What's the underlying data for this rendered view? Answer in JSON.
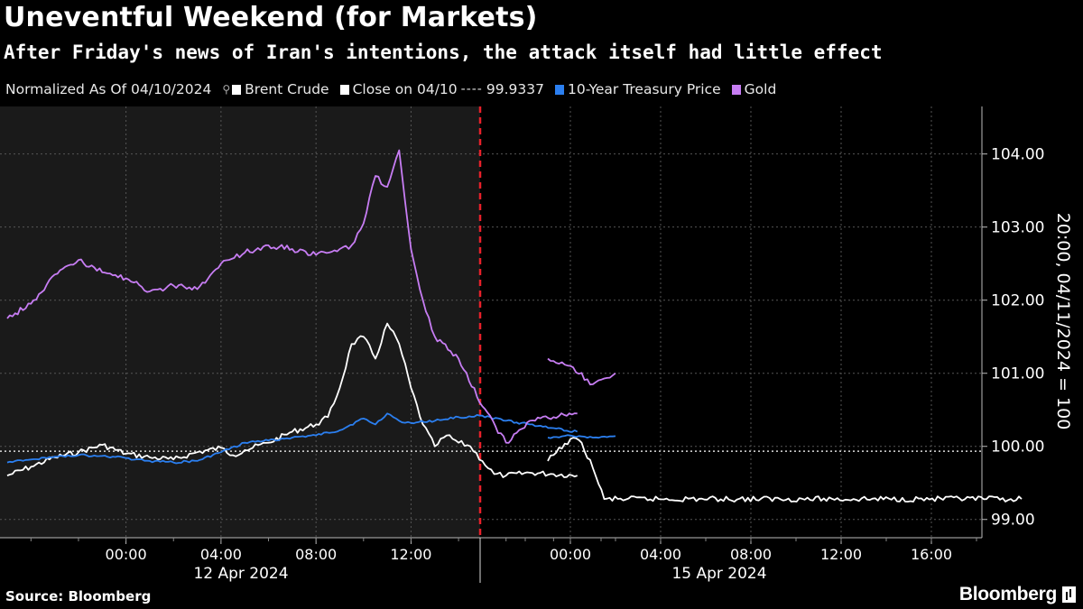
{
  "chart_data": {
    "type": "line",
    "title": "Uneventful Weekend (for Markets)",
    "subtitle": "After Friday's news of Iran's intentions, the attack itself had little effect",
    "normalization_note": "Normalized As Of 04/10/2024",
    "ylabel": "20:00, 04/11/2024 = 100",
    "ylim": [
      98.75,
      104.65
    ],
    "yticks": [
      99.0,
      100.0,
      101.0,
      102.0,
      103.0,
      104.0
    ],
    "ytick_labels": [
      "99.00",
      "100.00",
      "101.00",
      "102.00",
      "103.00",
      "104.00"
    ],
    "x_start": "2024-04-11T19:00",
    "xticks": [
      {
        "label": "00:00",
        "time": "2024-04-12T00:00"
      },
      {
        "label": "04:00",
        "time": "2024-04-12T04:00"
      },
      {
        "label": "08:00",
        "time": "2024-04-12T08:00"
      },
      {
        "label": "12:00",
        "time": "2024-04-12T12:00"
      },
      {
        "label": "00:00",
        "time": "2024-04-15T00:00"
      },
      {
        "label": "04:00",
        "time": "2024-04-15T04:00"
      },
      {
        "label": "08:00",
        "time": "2024-04-15T08:00"
      },
      {
        "label": "12:00",
        "time": "2024-04-15T12:00"
      },
      {
        "label": "16:00",
        "time": "2024-04-15T16:00"
      }
    ],
    "date_labels": [
      {
        "label": "12 Apr 2024"
      },
      {
        "label": "15 Apr 2024"
      }
    ],
    "weekend_break_label": "",
    "reference_line": {
      "name": "Close on 04/10",
      "value": 99.9337,
      "value_label": "99.9337",
      "color": "#dddddd"
    },
    "series": [
      {
        "name": "Brent Crude",
        "color": "#ffffff",
        "points": [
          [
            "2024-04-11T19:00",
            99.6
          ],
          [
            "2024-04-11T20:00",
            99.72
          ],
          [
            "2024-04-11T21:00",
            99.85
          ],
          [
            "2024-04-11T22:00",
            99.92
          ],
          [
            "2024-04-11T23:00",
            100.02
          ],
          [
            "2024-04-12T00:00",
            99.9
          ],
          [
            "2024-04-12T01:00",
            99.85
          ],
          [
            "2024-04-12T02:00",
            99.82
          ],
          [
            "2024-04-12T03:00",
            99.92
          ],
          [
            "2024-04-12T04:00",
            99.98
          ],
          [
            "2024-04-12T04:30",
            99.88
          ],
          [
            "2024-04-12T05:00",
            99.95
          ],
          [
            "2024-04-12T06:00",
            100.05
          ],
          [
            "2024-04-12T07:00",
            100.2
          ],
          [
            "2024-04-12T08:00",
            100.3
          ],
          [
            "2024-04-12T08:30",
            100.4
          ],
          [
            "2024-04-12T09:00",
            100.8
          ],
          [
            "2024-04-12T09:30",
            101.4
          ],
          [
            "2024-04-12T10:00",
            101.5
          ],
          [
            "2024-04-12T10:30",
            101.2
          ],
          [
            "2024-04-12T11:00",
            101.68
          ],
          [
            "2024-04-12T11:30",
            101.4
          ],
          [
            "2024-04-12T12:00",
            100.8
          ],
          [
            "2024-04-12T12:30",
            100.3
          ],
          [
            "2024-04-12T13:00",
            100.0
          ],
          [
            "2024-04-12T13:30",
            100.15
          ],
          [
            "2024-04-12T14:00",
            100.05
          ],
          [
            "2024-04-12T14:30",
            100.0
          ],
          [
            "2024-04-12T15:00",
            99.8
          ],
          [
            "2024-04-12T15:30",
            99.62
          ],
          [
            "2024-04-12T16:00",
            99.6
          ],
          [
            "2024-04-12T17:00",
            99.64
          ],
          [
            "2024-04-12T18:00",
            99.62
          ],
          [
            "2024-04-12T19:00",
            99.6
          ],
          [
            "2024-04-14T23:00",
            99.8
          ],
          [
            "2024-04-15T00:00",
            100.1
          ],
          [
            "2024-04-15T00:30",
            100.05
          ],
          [
            "2024-04-15T01:00",
            99.7
          ],
          [
            "2024-04-15T01:30",
            99.28
          ],
          [
            "2024-04-15T20:00",
            99.28
          ]
        ]
      },
      {
        "name": "10-Year Treasury Price",
        "color": "#2b7ff0",
        "points": [
          [
            "2024-04-11T19:00",
            99.78
          ],
          [
            "2024-04-11T20:00",
            99.82
          ],
          [
            "2024-04-11T21:00",
            99.86
          ],
          [
            "2024-04-11T22:00",
            99.88
          ],
          [
            "2024-04-11T23:00",
            99.87
          ],
          [
            "2024-04-12T00:00",
            99.84
          ],
          [
            "2024-04-12T01:00",
            99.8
          ],
          [
            "2024-04-12T02:00",
            99.78
          ],
          [
            "2024-04-12T03:00",
            99.8
          ],
          [
            "2024-04-12T04:00",
            99.92
          ],
          [
            "2024-04-12T05:00",
            100.05
          ],
          [
            "2024-04-12T06:00",
            100.08
          ],
          [
            "2024-04-12T07:00",
            100.12
          ],
          [
            "2024-04-12T08:00",
            100.15
          ],
          [
            "2024-04-12T09:00",
            100.22
          ],
          [
            "2024-04-12T10:00",
            100.38
          ],
          [
            "2024-04-12T10:30",
            100.3
          ],
          [
            "2024-04-12T11:00",
            100.45
          ],
          [
            "2024-04-12T11:30",
            100.35
          ],
          [
            "2024-04-12T12:00",
            100.32
          ],
          [
            "2024-04-12T13:00",
            100.35
          ],
          [
            "2024-04-12T14:00",
            100.4
          ],
          [
            "2024-04-12T15:00",
            100.42
          ],
          [
            "2024-04-12T16:00",
            100.35
          ],
          [
            "2024-04-12T17:00",
            100.3
          ],
          [
            "2024-04-12T18:00",
            100.25
          ],
          [
            "2024-04-12T19:00",
            100.2
          ],
          [
            "2024-04-14T23:00",
            100.12
          ],
          [
            "2024-04-15T00:00",
            100.15
          ],
          [
            "2024-04-15T01:00",
            100.12
          ],
          [
            "2024-04-15T02:00",
            100.14
          ]
        ]
      },
      {
        "name": "Gold",
        "color": "#c77df3",
        "points": [
          [
            "2024-04-11T19:00",
            101.75
          ],
          [
            "2024-04-11T20:00",
            101.95
          ],
          [
            "2024-04-11T21:00",
            102.35
          ],
          [
            "2024-04-11T22:00",
            102.55
          ],
          [
            "2024-04-11T23:00",
            102.38
          ],
          [
            "2024-04-12T00:00",
            102.3
          ],
          [
            "2024-04-12T01:00",
            102.12
          ],
          [
            "2024-04-12T02:00",
            102.2
          ],
          [
            "2024-04-12T03:00",
            102.15
          ],
          [
            "2024-04-12T04:00",
            102.5
          ],
          [
            "2024-04-12T05:00",
            102.65
          ],
          [
            "2024-04-12T06:00",
            102.75
          ],
          [
            "2024-04-12T07:00",
            102.7
          ],
          [
            "2024-04-12T08:00",
            102.62
          ],
          [
            "2024-04-12T09:00",
            102.7
          ],
          [
            "2024-04-12T09:30",
            102.75
          ],
          [
            "2024-04-12T10:00",
            103.05
          ],
          [
            "2024-04-12T10:30",
            103.7
          ],
          [
            "2024-04-12T11:00",
            103.55
          ],
          [
            "2024-04-12T11:30",
            104.05
          ],
          [
            "2024-04-12T12:00",
            102.7
          ],
          [
            "2024-04-12T12:30",
            102.0
          ],
          [
            "2024-04-12T13:00",
            101.5
          ],
          [
            "2024-04-12T14:00",
            101.2
          ],
          [
            "2024-04-12T15:00",
            100.55
          ],
          [
            "2024-04-12T16:00",
            100.05
          ],
          [
            "2024-04-12T17:00",
            100.35
          ],
          [
            "2024-04-12T18:00",
            100.4
          ],
          [
            "2024-04-12T19:00",
            100.45
          ],
          [
            "2024-04-14T23:00",
            101.2
          ],
          [
            "2024-04-15T00:00",
            101.1
          ],
          [
            "2024-04-15T01:00",
            100.85
          ],
          [
            "2024-04-15T02:00",
            101.0
          ]
        ]
      }
    ],
    "grid": true,
    "legend_position": "top-left",
    "source": "Source: Bloomberg",
    "brand": "Bloomberg"
  },
  "colors": {
    "background": "#000000",
    "shaded_region": "#1a1a1a",
    "weekend_marker": "#e8202a",
    "grid": "#555555"
  }
}
